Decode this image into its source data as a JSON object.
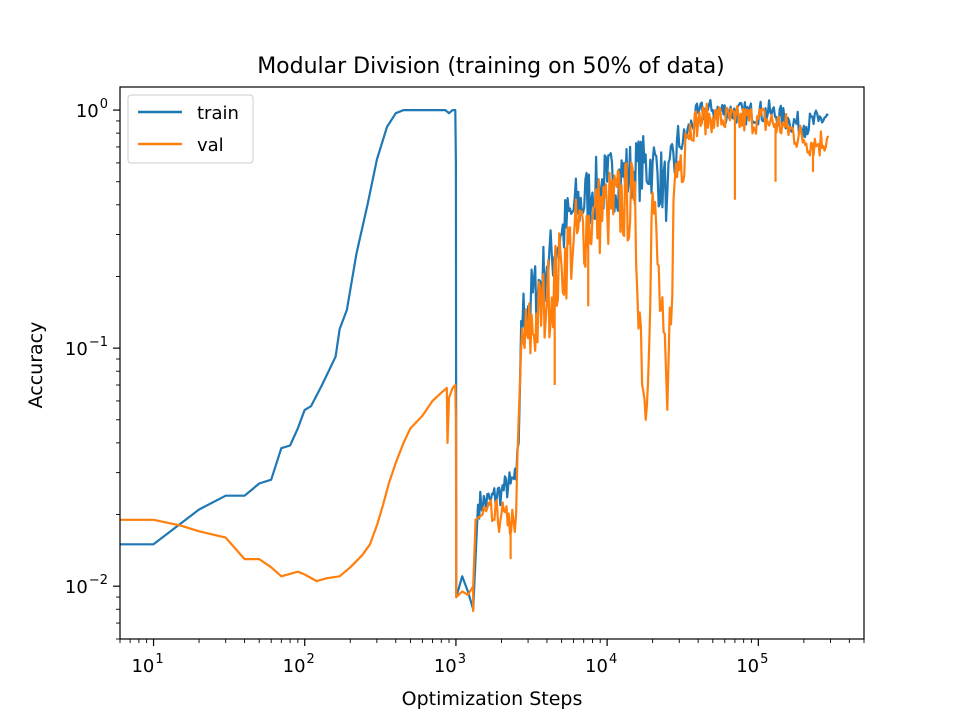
{
  "chart_data": {
    "type": "line",
    "title": "Modular Division (training on 50% of data)",
    "xlabel": "Optimization Steps",
    "ylabel": "Accuracy",
    "xscale": "log",
    "yscale": "log",
    "xlim": [
      6,
      500000
    ],
    "ylim": [
      0.006,
      1.25
    ],
    "grid": false,
    "legend": {
      "placement": "top-left"
    },
    "x_ticks": [
      {
        "base": "10",
        "exp": "1",
        "value": 10
      },
      {
        "base": "10",
        "exp": "2",
        "value": 100
      },
      {
        "base": "10",
        "exp": "3",
        "value": 1000
      },
      {
        "base": "10",
        "exp": "4",
        "value": 10000
      },
      {
        "base": "10",
        "exp": "5",
        "value": 100000
      }
    ],
    "y_ticks": [
      {
        "base": "10",
        "exp": "−2",
        "value": 0.01
      },
      {
        "base": "10",
        "exp": "−1",
        "value": 0.1
      },
      {
        "base": "10",
        "exp": "0",
        "value": 1
      }
    ],
    "series": [
      {
        "name": "train",
        "color": "#1f77b4",
        "points": [
          [
            6,
            0.015
          ],
          [
            10,
            0.015
          ],
          [
            20,
            0.021
          ],
          [
            30,
            0.024
          ],
          [
            40,
            0.024
          ],
          [
            50,
            0.027
          ],
          [
            60,
            0.028
          ],
          [
            70,
            0.038
          ],
          [
            80,
            0.039
          ],
          [
            90,
            0.046
          ],
          [
            100,
            0.055
          ],
          [
            110,
            0.057
          ],
          [
            130,
            0.07
          ],
          [
            160,
            0.092
          ],
          [
            170,
            0.12
          ],
          [
            190,
            0.145
          ],
          [
            220,
            0.25
          ],
          [
            260,
            0.4
          ],
          [
            300,
            0.62
          ],
          [
            350,
            0.85
          ],
          [
            400,
            0.97
          ],
          [
            450,
            1.0
          ],
          [
            600,
            1.0
          ],
          [
            850,
            1.0
          ],
          [
            900,
            0.97
          ],
          [
            950,
            1.0
          ],
          [
            990,
            1.0
          ],
          [
            1000,
            0.6
          ],
          [
            1005,
            0.009
          ],
          [
            1100,
            0.011
          ],
          [
            1200,
            0.0095
          ],
          [
            1300,
            0.008
          ],
          [
            1400,
            0.022
          ],
          [
            1700,
            0.023
          ],
          [
            2000,
            0.025
          ],
          [
            2300,
            0.027
          ],
          [
            2500,
            0.028
          ],
          [
            2600,
            0.04
          ],
          [
            2700,
            0.13
          ],
          [
            3000,
            0.15
          ],
          [
            4000,
            0.22
          ],
          [
            5000,
            0.3
          ],
          [
            6000,
            0.38
          ],
          [
            8000,
            0.45
          ],
          [
            10000,
            0.5
          ],
          [
            15000,
            0.55
          ],
          [
            20000,
            0.6
          ],
          [
            25000,
            0.45
          ],
          [
            30000,
            0.7
          ],
          [
            40000,
            0.97
          ],
          [
            50000,
            1.0
          ],
          [
            80000,
            0.97
          ],
          [
            120000,
            0.98
          ],
          [
            160000,
            0.9
          ],
          [
            200000,
            0.86
          ],
          [
            250000,
            0.9
          ],
          [
            290000,
            0.95
          ]
        ]
      },
      {
        "name": "val",
        "color": "#ff7f0e",
        "points": [
          [
            6,
            0.019
          ],
          [
            10,
            0.019
          ],
          [
            15,
            0.018
          ],
          [
            20,
            0.017
          ],
          [
            30,
            0.016
          ],
          [
            40,
            0.013
          ],
          [
            50,
            0.013
          ],
          [
            60,
            0.012
          ],
          [
            70,
            0.011
          ],
          [
            90,
            0.0115
          ],
          [
            100,
            0.0112
          ],
          [
            120,
            0.0105
          ],
          [
            140,
            0.0108
          ],
          [
            170,
            0.011
          ],
          [
            200,
            0.012
          ],
          [
            240,
            0.0135
          ],
          [
            270,
            0.015
          ],
          [
            300,
            0.018
          ],
          [
            330,
            0.022
          ],
          [
            360,
            0.027
          ],
          [
            400,
            0.033
          ],
          [
            450,
            0.04
          ],
          [
            500,
            0.046
          ],
          [
            600,
            0.052
          ],
          [
            700,
            0.06
          ],
          [
            800,
            0.065
          ],
          [
            870,
            0.068
          ],
          [
            880,
            0.04
          ],
          [
            900,
            0.062
          ],
          [
            950,
            0.068
          ],
          [
            990,
            0.07
          ],
          [
            1000,
            0.05
          ],
          [
            1005,
            0.009
          ],
          [
            1100,
            0.0095
          ],
          [
            1200,
            0.0092
          ],
          [
            1300,
            0.01
          ],
          [
            1350,
            0.019
          ],
          [
            1500,
            0.02
          ],
          [
            1800,
            0.019
          ],
          [
            2000,
            0.02
          ],
          [
            2200,
            0.018
          ],
          [
            2400,
            0.019
          ],
          [
            2500,
            0.02
          ],
          [
            2700,
            0.1
          ],
          [
            3000,
            0.11
          ],
          [
            4000,
            0.16
          ],
          [
            5000,
            0.22
          ],
          [
            6000,
            0.28
          ],
          [
            8000,
            0.35
          ],
          [
            10000,
            0.38
          ],
          [
            15000,
            0.42
          ],
          [
            18000,
            0.05
          ],
          [
            20000,
            0.45
          ],
          [
            25000,
            0.055
          ],
          [
            28000,
            0.5
          ],
          [
            33000,
            0.8
          ],
          [
            40000,
            0.9
          ],
          [
            50000,
            0.93
          ],
          [
            70000,
            0.9
          ],
          [
            100000,
            0.92
          ],
          [
            150000,
            0.85
          ],
          [
            200000,
            0.75
          ],
          [
            250000,
            0.72
          ],
          [
            290000,
            0.78
          ]
        ],
        "dips": [
          [
            880,
            0.04
          ],
          [
            1300,
            0.0078
          ],
          [
            2300,
            0.013
          ],
          [
            4500,
            0.07
          ],
          [
            7500,
            0.15
          ],
          [
            18000,
            0.05
          ],
          [
            25000,
            0.055
          ],
          [
            70000,
            0.42
          ],
          [
            130000,
            0.5
          ],
          [
            230000,
            0.55
          ]
        ]
      }
    ]
  }
}
